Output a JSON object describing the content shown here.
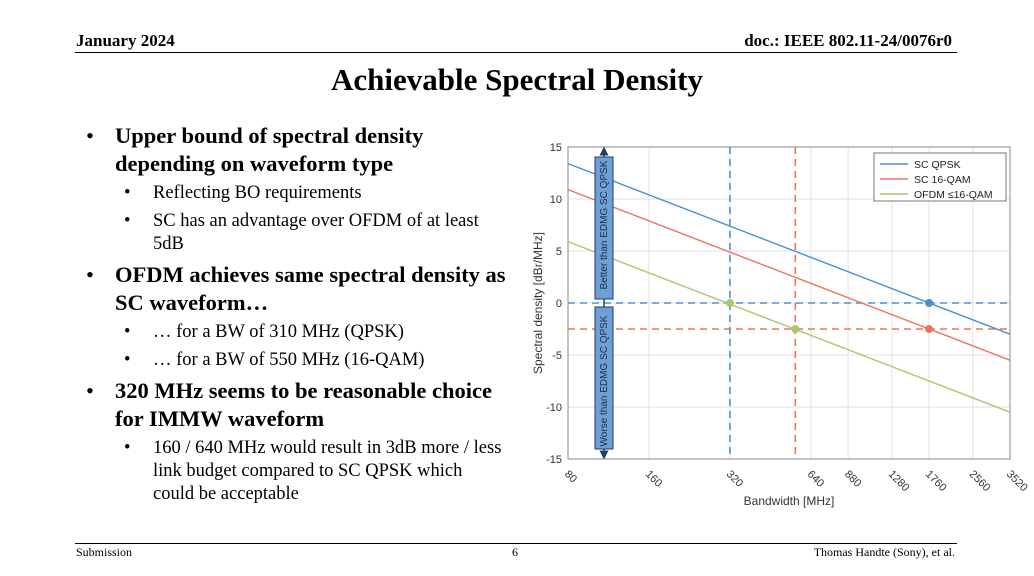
{
  "header": {
    "date": "January 2024",
    "doc": "doc.: IEEE 802.11-24/0076r0"
  },
  "title": "Achievable Spectral Density",
  "bullets": [
    {
      "text": "Upper bound of spectral density depending on waveform type",
      "sub": [
        "Reflecting BO requirements",
        "SC has an advantage over OFDM of at least 5dB"
      ]
    },
    {
      "text": "OFDM achieves same spectral density as SC waveform…",
      "sub": [
        "… for a BW of 310 MHz (QPSK)",
        "… for a BW of 550 MHz (16-QAM)"
      ]
    },
    {
      "text": "320 MHz seems to be reasonable choice for IMMW waveform",
      "sub": [
        "160 / 640 MHz would result in 3dB more / less link budget compared to SC QPSK which could be acceptable"
      ]
    }
  ],
  "chart_data": {
    "type": "line",
    "x_scale": "log2",
    "xlabel": "Bandwidth [MHz]",
    "ylabel": "Spectral density [dBr/MHz]",
    "xlim": [
      80,
      3520
    ],
    "ylim": [
      -15,
      15
    ],
    "xticks": [
      80,
      160,
      320,
      640,
      880,
      1280,
      1760,
      2560,
      3520
    ],
    "yticks": [
      -15,
      -10,
      -5,
      0,
      5,
      10,
      15
    ],
    "grid": true,
    "legend_position": "top-right",
    "series": [
      {
        "name": "SC QPSK",
        "color": "#4a90d0",
        "x": [
          80,
          3520
        ],
        "y": [
          13.4,
          -3.0
        ]
      },
      {
        "name": "SC 16-QAM",
        "color": "#e8765a",
        "x": [
          80,
          3520
        ],
        "y": [
          10.9,
          -5.5
        ]
      },
      {
        "name": "OFDM ≤16-QAM",
        "color": "#a8c870",
        "x": [
          80,
          3520
        ],
        "y": [
          5.9,
          -10.5
        ]
      }
    ],
    "ref_lines": [
      {
        "orientation": "vertical",
        "x": 320,
        "color": "#4a90d0"
      },
      {
        "orientation": "vertical",
        "x": 560,
        "color": "#e8765a"
      },
      {
        "orientation": "horizontal",
        "y": 0,
        "color": "#4a90d0"
      },
      {
        "orientation": "horizontal",
        "y": -2.5,
        "color": "#e8765a"
      }
    ],
    "markers": [
      {
        "x": 320,
        "y": 0,
        "color": "#a8c870"
      },
      {
        "x": 560,
        "y": -2.5,
        "color": "#a8c870"
      },
      {
        "x": 1760,
        "y": 0,
        "color": "#4a90d0"
      },
      {
        "x": 1760,
        "y": -2.5,
        "color": "#e8765a"
      }
    ],
    "annotations": [
      {
        "text": "Better than EDMG SC QPSK",
        "direction": "up",
        "from_y": 0,
        "to_y": 15
      },
      {
        "text": "Worse than EDMG SC QPSK",
        "direction": "down",
        "from_y": 0,
        "to_y": -15
      }
    ]
  },
  "footer": {
    "left": "Submission",
    "page": "6",
    "right": "Thomas Handte (Sony), et al."
  }
}
